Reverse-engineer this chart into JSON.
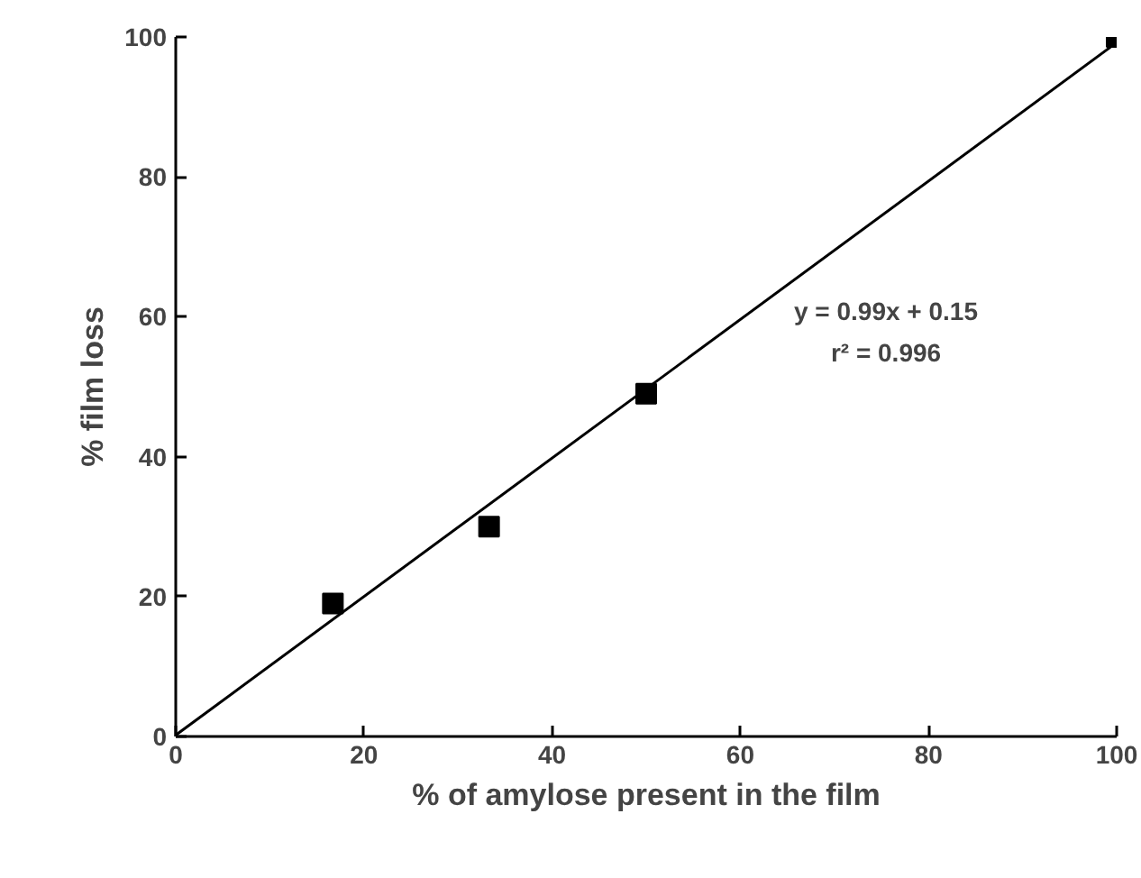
{
  "chart_data": {
    "type": "scatter",
    "xlabel": "% of amylose present in the film",
    "ylabel": "% film loss",
    "series": [
      {
        "color": "#000000",
        "x": [
          16.7,
          33.3,
          50,
          100
        ],
        "values": [
          19,
          30,
          49,
          100
        ]
      },
      {
        "type": "line",
        "marker": "none",
        "color": "#000000",
        "x": [
          0,
          100
        ],
        "values": [
          0.2,
          99.2
        ]
      }
    ],
    "annotations": [
      "y = 0.99x + 0.15",
      "r² = 0.996"
    ],
    "xlim": [
      0,
      100
    ],
    "ylim": [
      0,
      100
    ],
    "xticks": [
      0,
      20,
      40,
      60,
      80,
      100
    ],
    "yticks": [
      0,
      20,
      40,
      60,
      80,
      100
    ],
    "grid": false,
    "marker": "square",
    "line_style": "solid"
  }
}
